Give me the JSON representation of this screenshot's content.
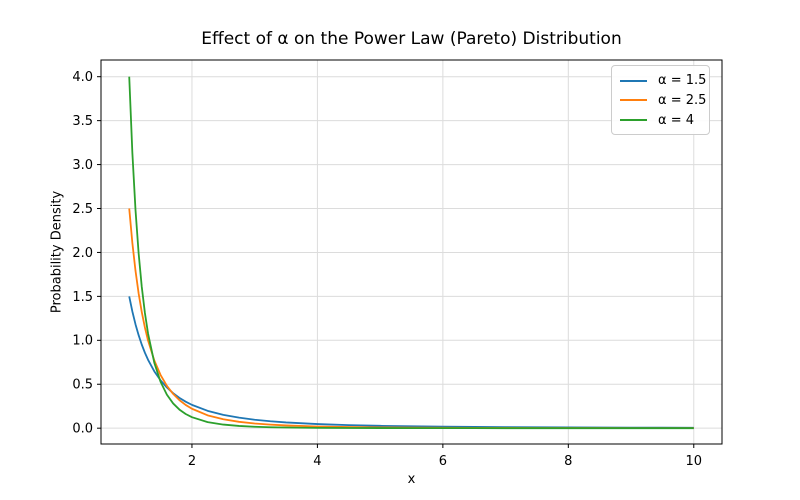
{
  "chart_data": {
    "type": "line",
    "title": "Effect of α on the Power Law (Pareto) Distribution",
    "xlabel": "x",
    "ylabel": "Probability Density",
    "xlim": [
      0.55,
      10.45
    ],
    "ylim": [
      -0.18,
      4.19
    ],
    "xticks": [
      2,
      4,
      6,
      8,
      10
    ],
    "ytick_labels": [
      "0.0",
      "0.5",
      "1.0",
      "1.5",
      "2.0",
      "2.5",
      "3.0",
      "3.5",
      "4.0"
    ],
    "grid": true,
    "grid_color": "#dcdcdc",
    "spine_color": "#000000",
    "legend_position": "upper right",
    "x": [
      1,
      1.05,
      1.1,
      1.15,
      1.2,
      1.25,
      1.3,
      1.4,
      1.5,
      1.6,
      1.7,
      1.8,
      1.9,
      2,
      2.25,
      2.5,
      2.75,
      3,
      3.25,
      3.5,
      4,
      4.5,
      5,
      5.5,
      6,
      6.5,
      7,
      7.5,
      8,
      8.5,
      9,
      9.5,
      10
    ],
    "series": [
      {
        "name": "α = 1.5",
        "alpha": 1.5,
        "color": "#1f77b4",
        "y": [
          1.5,
          1.328,
          1.182,
          1.058,
          0.951,
          0.8586,
          0.7784,
          0.6468,
          0.5443,
          0.4632,
          0.3981,
          0.3451,
          0.3015,
          0.2652,
          0.1975,
          0.1518,
          0.1196,
          0.0962,
          0.0788,
          0.0654,
          0.0469,
          0.0349,
          0.0268,
          0.0211,
          0.017,
          0.0139,
          0.0116,
          0.0097,
          0.0083,
          0.0071,
          0.0062,
          0.0054,
          0.0047
        ]
      },
      {
        "name": "α = 2.5",
        "alpha": 2.5,
        "color": "#ff7f0e",
        "y": [
          2.5,
          2.108,
          1.791,
          1.533,
          1.321,
          1.1449,
          0.998,
          0.77,
          0.6048,
          0.4825,
          0.3902,
          0.3195,
          0.2644,
          0.221,
          0.1463,
          0.1012,
          0.0725,
          0.0535,
          0.0404,
          0.0312,
          0.0195,
          0.0129,
          0.0089,
          0.0064,
          0.0047,
          0.0036,
          0.0028,
          0.0022,
          0.0017,
          0.0014,
          0.0011,
          0.0009,
          0.0008
        ]
      },
      {
        "name": "α = 4",
        "alpha": 4,
        "color": "#2ca02c",
        "y": [
          4,
          3.134,
          2.484,
          1.989,
          1.608,
          1.3107,
          1.0773,
          0.7437,
          0.5267,
          0.3815,
          0.2817,
          0.2117,
          0.1615,
          0.125,
          0.0694,
          0.041,
          0.0254,
          0.0165,
          0.011,
          0.0076,
          0.0039,
          0.0022,
          0.0013,
          0.0008,
          0.0005,
          0.0003,
          0.0002,
          0.0002,
          0.0001,
          0.0001,
          0.0001,
          0.0001,
          4e-05
        ]
      }
    ]
  }
}
